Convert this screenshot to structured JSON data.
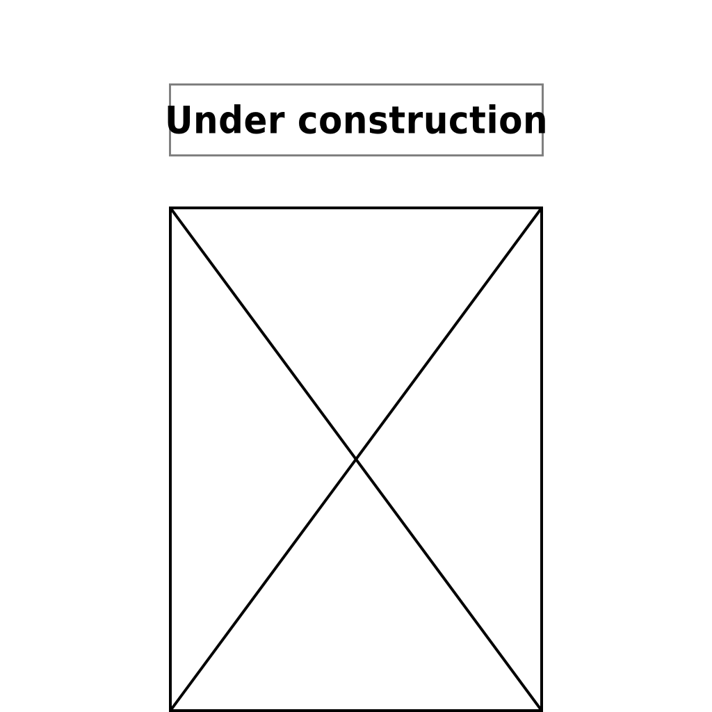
{
  "banner": {
    "title": "Under construction"
  },
  "colors": {
    "background": "#ffffff",
    "banner_border": "#808080",
    "text": "#000000",
    "placeholder_stroke": "#000000"
  },
  "placeholder": {
    "icon": "image-placeholder-icon"
  }
}
